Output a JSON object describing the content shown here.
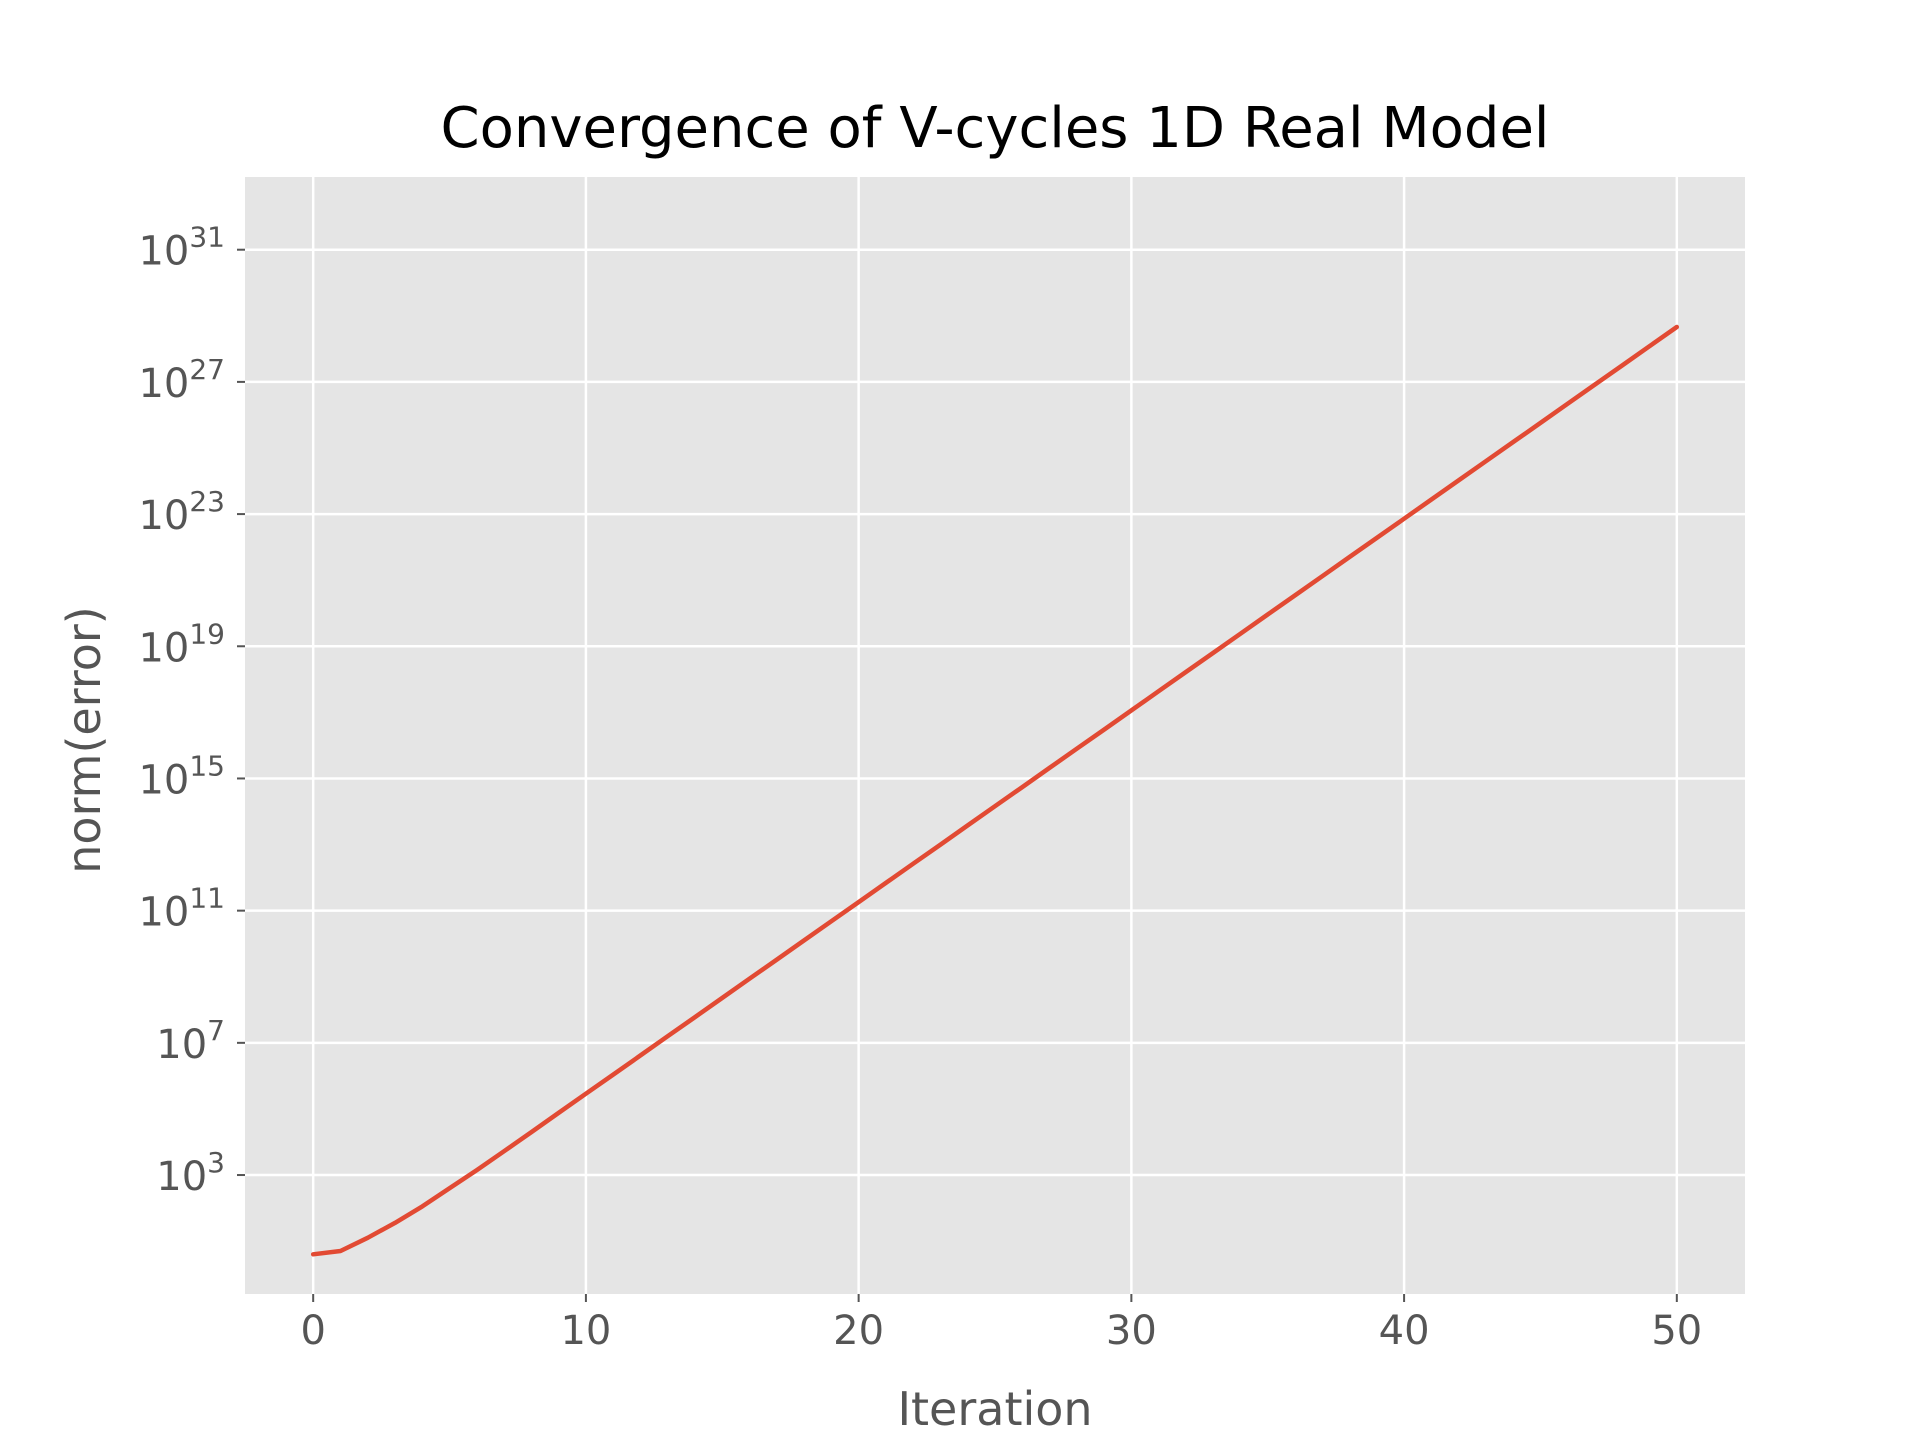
{
  "chart_data": {
    "type": "line",
    "title": "Convergence of V-cycles 1D Real Model",
    "xlabel": "Iteration",
    "ylabel": "norm(error)",
    "yscale": "log",
    "grid": true,
    "legend": "none",
    "xlim": [
      -2.5,
      52.5
    ],
    "ylim_exponent": [
      -0.6,
      33.2
    ],
    "x_ticks": [
      0,
      10,
      20,
      30,
      40,
      50
    ],
    "x_tick_labels": [
      "0",
      "10",
      "20",
      "30",
      "40",
      "50"
    ],
    "y_tick_exponents": [
      3,
      7,
      11,
      15,
      19,
      23,
      27,
      31
    ],
    "y_tick_base": "10",
    "y_tick_sups": [
      "3",
      "7",
      "11",
      "15",
      "19",
      "23",
      "27",
      "31"
    ],
    "series": [
      {
        "color": "#E24A33",
        "x": [
          0,
          1,
          2,
          3,
          4,
          5,
          6,
          7,
          8,
          9,
          10,
          11,
          12,
          13,
          14,
          15,
          16,
          17,
          18,
          19,
          20,
          21,
          22,
          23,
          24,
          25,
          26,
          27,
          28,
          29,
          30,
          31,
          32,
          33,
          34,
          35,
          36,
          37,
          38,
          39,
          40,
          41,
          42,
          43,
          44,
          45,
          46,
          47,
          48,
          49,
          50
        ],
        "y_exponent": [
          0.6,
          0.7,
          1.1,
          1.55,
          2.05,
          2.6,
          3.15,
          3.72,
          4.3,
          4.88,
          5.46,
          6.04,
          6.62,
          7.2,
          7.78,
          8.36,
          8.94,
          9.52,
          10.1,
          10.68,
          11.26,
          11.84,
          12.42,
          13.0,
          13.58,
          14.16,
          14.74,
          15.32,
          15.9,
          16.48,
          17.06,
          17.64,
          18.22,
          18.8,
          19.38,
          19.96,
          20.54,
          21.12,
          21.7,
          22.28,
          22.86,
          23.44,
          24.02,
          24.6,
          25.18,
          25.76,
          26.34,
          26.92,
          27.5,
          28.08,
          28.66
        ]
      }
    ]
  },
  "colors": {
    "plot_background": "#E5E5E5",
    "grid": "#FFFFFF",
    "tick_text": "#555555",
    "title_text": "#000000",
    "line": "#E24A33"
  }
}
